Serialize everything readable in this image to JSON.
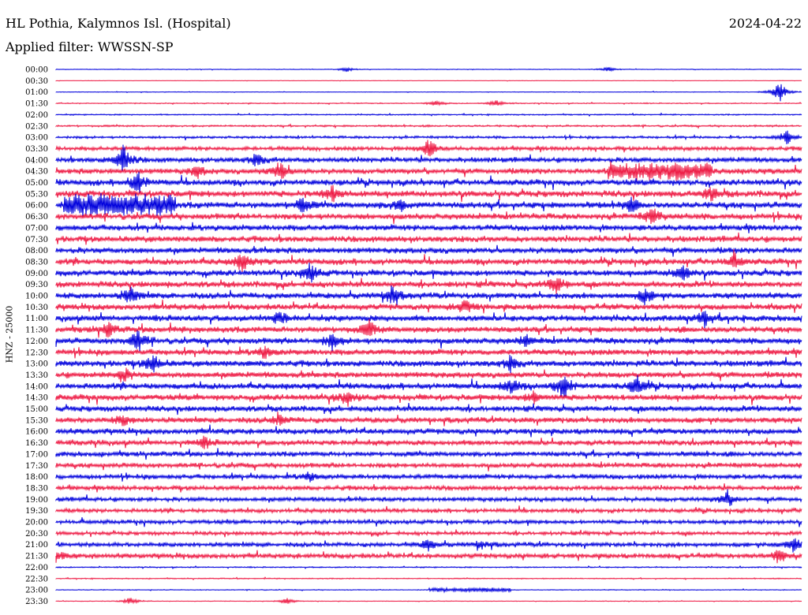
{
  "header": {
    "title": "HL Pothia, Kalymnos Isl. (Hospital)",
    "date": "2024-04-22",
    "filter": "Applied filter: WWSSN-SP"
  },
  "chart_data": {
    "type": "line",
    "title": "HL Pothia, Kalymnos Isl. (Hospital)",
    "xlabel": "",
    "ylabel": "HNZ - 25000",
    "tick_labels": [
      "00:00",
      "00:30",
      "01:00",
      "01:30",
      "02:00",
      "02:30",
      "03:00",
      "03:30",
      "04:00",
      "04:30",
      "05:00",
      "05:30",
      "06:00",
      "06:30",
      "07:00",
      "07:30",
      "08:00",
      "08:30",
      "09:00",
      "09:30",
      "10:00",
      "10:30",
      "11:00",
      "11:30",
      "12:00",
      "12:30",
      "13:00",
      "13:30",
      "14:00",
      "14:30",
      "15:00",
      "15:30",
      "16:00",
      "16:30",
      "17:00",
      "17:30",
      "18:00",
      "18:30",
      "19:00",
      "19:30",
      "20:00",
      "20:30",
      "21:00",
      "21:30",
      "22:00",
      "22:30",
      "23:00",
      "23:30"
    ],
    "colors": {
      "even": "#0000dd",
      "odd": "#ee1a44"
    },
    "noise_level": [
      0.3,
      0.2,
      0.3,
      0.5,
      0.6,
      0.9,
      1.2,
      2.0,
      2.5,
      2.8,
      3.0,
      3.2,
      3.2,
      3.0,
      3.0,
      3.0,
      3.0,
      3.0,
      3.0,
      3.0,
      3.0,
      3.0,
      3.0,
      3.0,
      3.0,
      3.0,
      3.0,
      3.0,
      3.0,
      3.0,
      2.8,
      2.8,
      2.8,
      2.6,
      2.5,
      2.4,
      2.4,
      2.3,
      2.2,
      2.0,
      2.0,
      1.8,
      2.2,
      2.4,
      0.6,
      0.5,
      0.4,
      0.3
    ],
    "events": [
      {
        "trace": 0,
        "x": 0.39,
        "amp": 3
      },
      {
        "trace": 0,
        "x": 0.74,
        "amp": 3
      },
      {
        "trace": 2,
        "x": 0.97,
        "amp": 14
      },
      {
        "trace": 3,
        "x": 0.51,
        "amp": 4
      },
      {
        "trace": 3,
        "x": 0.59,
        "amp": 4
      },
      {
        "trace": 6,
        "x": 0.98,
        "amp": 9
      },
      {
        "trace": 7,
        "x": 0.5,
        "amp": 12
      },
      {
        "trace": 8,
        "x": 0.09,
        "amp": 18
      },
      {
        "trace": 8,
        "x": 0.27,
        "amp": 8
      },
      {
        "trace": 9,
        "x": 0.3,
        "amp": 12
      },
      {
        "trace": 9,
        "x": 0.19,
        "amp": 7
      },
      {
        "trace": 10,
        "x": 0.11,
        "amp": 14
      },
      {
        "trace": 11,
        "x": 0.37,
        "amp": 10
      },
      {
        "trace": 11,
        "x": 0.88,
        "amp": 8
      },
      {
        "trace": 12,
        "x": 0.33,
        "amp": 9
      },
      {
        "trace": 12,
        "x": 0.46,
        "amp": 7
      },
      {
        "trace": 12,
        "x": 0.77,
        "amp": 8
      },
      {
        "trace": 13,
        "x": 0.8,
        "amp": 10
      },
      {
        "trace": 17,
        "x": 0.25,
        "amp": 11
      },
      {
        "trace": 17,
        "x": 0.91,
        "amp": 9
      },
      {
        "trace": 18,
        "x": 0.34,
        "amp": 12
      },
      {
        "trace": 18,
        "x": 0.84,
        "amp": 10
      },
      {
        "trace": 19,
        "x": 0.67,
        "amp": 11
      },
      {
        "trace": 20,
        "x": 0.1,
        "amp": 11
      },
      {
        "trace": 20,
        "x": 0.45,
        "amp": 12
      },
      {
        "trace": 20,
        "x": 0.79,
        "amp": 9
      },
      {
        "trace": 21,
        "x": 0.55,
        "amp": 8
      },
      {
        "trace": 22,
        "x": 0.3,
        "amp": 9
      },
      {
        "trace": 22,
        "x": 0.87,
        "amp": 10
      },
      {
        "trace": 23,
        "x": 0.07,
        "amp": 9
      },
      {
        "trace": 23,
        "x": 0.42,
        "amp": 10
      },
      {
        "trace": 24,
        "x": 0.11,
        "amp": 13
      },
      {
        "trace": 24,
        "x": 0.37,
        "amp": 10
      },
      {
        "trace": 24,
        "x": 0.63,
        "amp": 7
      },
      {
        "trace": 25,
        "x": 0.28,
        "amp": 8
      },
      {
        "trace": 26,
        "x": 0.13,
        "amp": 12
      },
      {
        "trace": 26,
        "x": 0.61,
        "amp": 9
      },
      {
        "trace": 27,
        "x": 0.09,
        "amp": 9
      },
      {
        "trace": 28,
        "x": 0.68,
        "amp": 16
      },
      {
        "trace": 28,
        "x": 0.78,
        "amp": 12
      },
      {
        "trace": 28,
        "x": 0.61,
        "amp": 10
      },
      {
        "trace": 29,
        "x": 0.39,
        "amp": 9
      },
      {
        "trace": 29,
        "x": 0.64,
        "amp": 7
      },
      {
        "trace": 31,
        "x": 0.09,
        "amp": 7
      },
      {
        "trace": 31,
        "x": 0.3,
        "amp": 7
      },
      {
        "trace": 33,
        "x": 0.2,
        "amp": 7
      },
      {
        "trace": 36,
        "x": 0.34,
        "amp": 6
      },
      {
        "trace": 38,
        "x": 0.9,
        "amp": 10
      },
      {
        "trace": 42,
        "x": 0.5,
        "amp": 7
      },
      {
        "trace": 42,
        "x": 0.57,
        "amp": 6
      },
      {
        "trace": 42,
        "x": 0.99,
        "amp": 11
      },
      {
        "trace": 43,
        "x": 0.97,
        "amp": 10
      },
      {
        "trace": 43,
        "x": 0.0,
        "amp": 9
      },
      {
        "trace": 47,
        "x": 0.1,
        "amp": 5
      },
      {
        "trace": 47,
        "x": 0.31,
        "amp": 4
      }
    ],
    "sustained": [
      {
        "trace": 12,
        "x0": 0.01,
        "x1": 0.16,
        "amp": 10
      },
      {
        "trace": 9,
        "x0": 0.74,
        "x1": 0.88,
        "amp": 8
      },
      {
        "trace": 46,
        "x0": 0.5,
        "x1": 0.61,
        "amp": 2
      }
    ]
  }
}
